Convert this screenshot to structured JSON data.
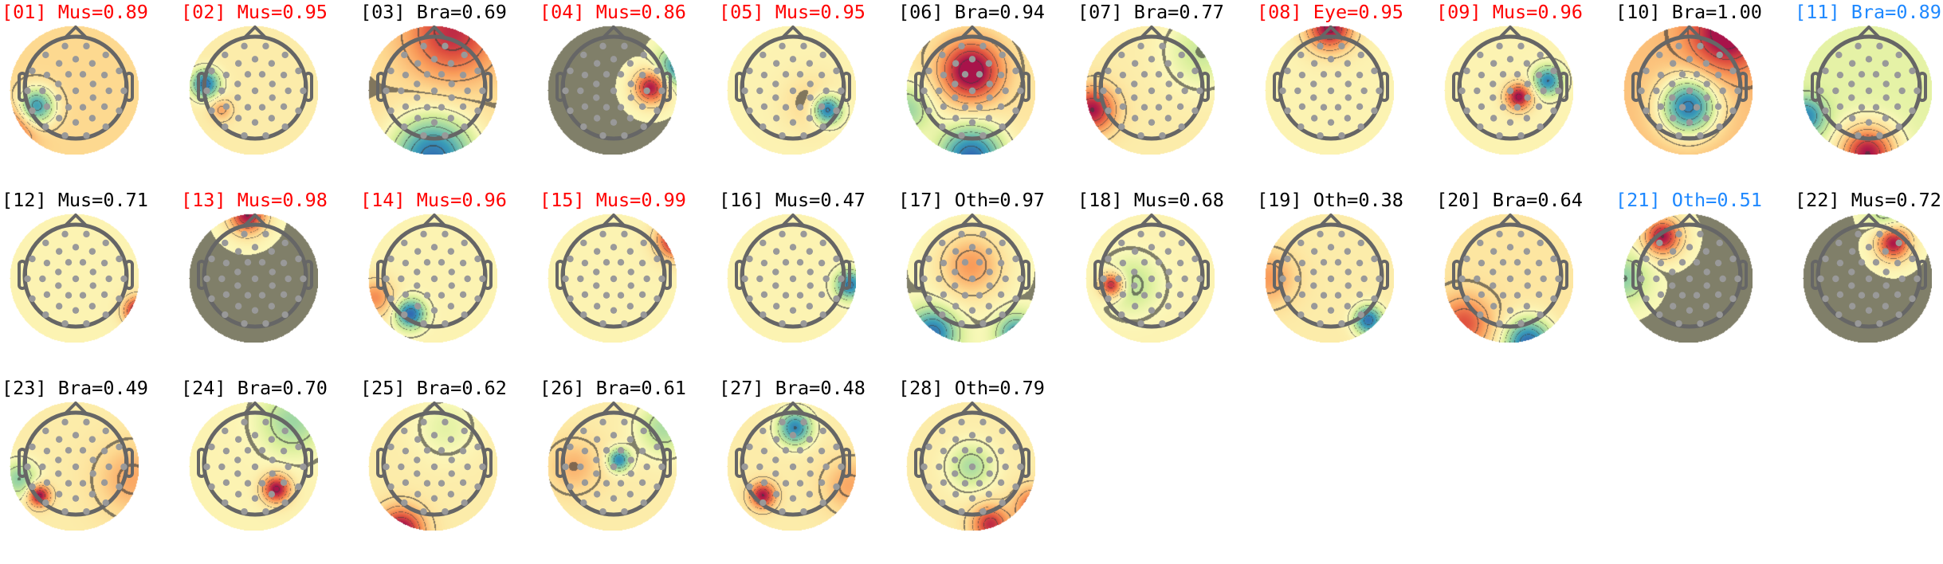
{
  "chart_data": {
    "type": "topomap-grid",
    "colormap": "Spectral_r",
    "colors": {
      "flagged": "#ff0000",
      "uncertain": "#1e88ff",
      "default": "#000000"
    },
    "components": [
      {
        "label": "[01] Mus=0.89",
        "color": "#ff0000",
        "base": 0.25,
        "sources": [
          [
            -0.6,
            0.25,
            -1,
            0.2
          ],
          [
            -0.95,
            0.55,
            0.5,
            0.25
          ]
        ]
      },
      {
        "label": "[02] Mus=0.95",
        "color": "#ff0000",
        "base": 0.1,
        "sources": [
          [
            -0.75,
            -0.1,
            -1,
            0.15
          ],
          [
            -0.5,
            0.3,
            0.35,
            0.12
          ]
        ]
      },
      {
        "label": "[03] Bra=0.69",
        "color": "#000000",
        "base": 0.2,
        "sources": [
          [
            0.3,
            -0.9,
            0.7,
            0.5
          ],
          [
            0,
            1.05,
            -1.1,
            0.45
          ]
        ]
      },
      {
        "label": "[04] Mus=0.86",
        "color": "#ff0000",
        "base": 0.0,
        "sources": [
          [
            0.6,
            -0.05,
            1,
            0.18
          ],
          [
            0.98,
            -0.35,
            -0.7,
            0.2
          ]
        ]
      },
      {
        "label": "[05] Mus=0.95",
        "color": "#ff0000",
        "base": 0.05,
        "sources": [
          [
            0.55,
            0.3,
            -1,
            0.15
          ],
          [
            0.3,
            0.2,
            0.2,
            0.3
          ]
        ]
      },
      {
        "label": "[06] Bra=0.94",
        "color": "#000000",
        "base": 0.15,
        "sources": [
          [
            0,
            -0.3,
            1,
            0.33
          ],
          [
            0,
            1.05,
            -1.1,
            0.35
          ],
          [
            -1,
            0.3,
            -0.5,
            0.3
          ]
        ]
      },
      {
        "label": "[07] Bra=0.77",
        "color": "#000000",
        "base": 0.1,
        "sources": [
          [
            -0.9,
            0.3,
            0.9,
            0.25
          ],
          [
            0.8,
            -0.6,
            -0.3,
            0.4
          ]
        ]
      },
      {
        "label": "[08] Eye=0.95",
        "color": "#ff0000",
        "base": 0.05,
        "sources": [
          [
            0,
            -0.98,
            1,
            0.25
          ]
        ]
      },
      {
        "label": "[09] Mus=0.96",
        "color": "#ff0000",
        "base": 0.05,
        "sources": [
          [
            0.15,
            0.1,
            1,
            0.14
          ],
          [
            0.6,
            -0.15,
            -0.85,
            0.15
          ]
        ]
      },
      {
        "label": "[10] Bra=1.00",
        "color": "#000000",
        "base": 0.35,
        "sources": [
          [
            0.6,
            -0.9,
            0.8,
            0.4
          ],
          [
            0,
            0.25,
            -1.2,
            0.3
          ]
        ]
      },
      {
        "label": "[11] Bra=0.89",
        "color": "#1e88ff",
        "base": -0.1,
        "sources": [
          [
            0,
            0.98,
            1.1,
            0.3
          ],
          [
            -0.95,
            0.4,
            -0.7,
            0.2
          ]
        ]
      },
      {
        "label": "[12] Mus=0.71",
        "color": "#000000",
        "base": 0.05,
        "sources": [
          [
            0.98,
            0.5,
            1,
            0.15
          ]
        ]
      },
      {
        "label": "[13] Mus=0.98",
        "color": "#ff0000",
        "base": 0.0,
        "sources": [
          [
            -0.1,
            -0.98,
            1,
            0.2
          ]
        ]
      },
      {
        "label": "[14] Mus=0.96",
        "color": "#ff0000",
        "base": 0.05,
        "sources": [
          [
            -0.35,
            0.55,
            -1,
            0.15
          ],
          [
            -0.9,
            0.3,
            0.5,
            0.2
          ]
        ]
      },
      {
        "label": "[15] Mus=0.99",
        "color": "#ff0000",
        "base": 0.05,
        "sources": [
          [
            0.98,
            -0.6,
            1,
            0.2
          ]
        ]
      },
      {
        "label": "[16] Mus=0.47",
        "color": "#000000",
        "base": 0.05,
        "sources": [
          [
            0.9,
            0.1,
            -0.9,
            0.15
          ]
        ]
      },
      {
        "label": "[17] Oth=0.97",
        "color": "#000000",
        "base": 0.0,
        "sources": [
          [
            0,
            -0.2,
            0.5,
            0.35
          ],
          [
            -0.6,
            0.85,
            -0.9,
            0.25
          ],
          [
            0.7,
            0.85,
            -0.7,
            0.2
          ]
        ]
      },
      {
        "label": "[18] Mus=0.68",
        "color": "#000000",
        "base": 0.05,
        "sources": [
          [
            -0.6,
            0.1,
            1,
            0.13
          ],
          [
            -0.3,
            0.1,
            -0.3,
            0.3
          ]
        ]
      },
      {
        "label": "[19] Oth=0.38",
        "color": "#000000",
        "base": 0.1,
        "sources": [
          [
            0.6,
            0.65,
            -1,
            0.15
          ],
          [
            -0.95,
            0,
            0.4,
            0.3
          ]
        ]
      },
      {
        "label": "[20] Bra=0.64",
        "color": "#000000",
        "base": 0.15,
        "sources": [
          [
            0.3,
            1.0,
            -1.1,
            0.25
          ],
          [
            -0.7,
            0.7,
            0.6,
            0.3
          ]
        ]
      },
      {
        "label": "[21] Oth=0.51",
        "color": "#1e88ff",
        "base": 0.0,
        "sources": [
          [
            -0.4,
            -0.65,
            1,
            0.2
          ],
          [
            -1,
            0,
            -0.4,
            0.25
          ]
        ]
      },
      {
        "label": "[22] Mus=0.72",
        "color": "#000000",
        "base": 0.0,
        "sources": [
          [
            0.4,
            -0.55,
            1,
            0.18
          ],
          [
            0.3,
            -1,
            -0.3,
            0.2
          ]
        ]
      },
      {
        "label": "[23] Bra=0.49",
        "color": "#000000",
        "base": 0.1,
        "sources": [
          [
            -0.55,
            0.45,
            1,
            0.12
          ],
          [
            -0.85,
            0.2,
            -0.5,
            0.2
          ],
          [
            0.9,
            0.2,
            0.35,
            0.4
          ]
        ]
      },
      {
        "label": "[24] Bra=0.70",
        "color": "#000000",
        "base": 0.05,
        "sources": [
          [
            0.35,
            0.35,
            1,
            0.15
          ],
          [
            0.6,
            -0.7,
            -0.4,
            0.35
          ]
        ]
      },
      {
        "label": "[25] Bra=0.62",
        "color": "#000000",
        "base": 0.1,
        "sources": [
          [
            -0.5,
            1.0,
            1,
            0.25
          ],
          [
            0.2,
            -0.6,
            -0.2,
            0.35
          ]
        ]
      },
      {
        "label": "[26] Bra=0.61",
        "color": "#000000",
        "base": 0.1,
        "sources": [
          [
            0.1,
            -0.1,
            -0.9,
            0.12
          ],
          [
            0.8,
            -0.6,
            -0.4,
            0.3
          ],
          [
            -0.6,
            0,
            0.3,
            0.3
          ]
        ]
      },
      {
        "label": "[27] Bra=0.48",
        "color": "#000000",
        "base": 0.1,
        "sources": [
          [
            0.05,
            -0.6,
            -0.9,
            0.18
          ],
          [
            -0.45,
            0.45,
            0.9,
            0.14
          ],
          [
            0.9,
            0.3,
            0.35,
            0.3
          ]
        ]
      },
      {
        "label": "[28] Oth=0.79",
        "color": "#000000",
        "base": 0.1,
        "sources": [
          [
            0.3,
            0.9,
            0.8,
            0.2
          ],
          [
            0,
            0,
            -0.4,
            0.25
          ],
          [
            0.95,
            0.6,
            0.6,
            0.2
          ]
        ]
      }
    ]
  }
}
